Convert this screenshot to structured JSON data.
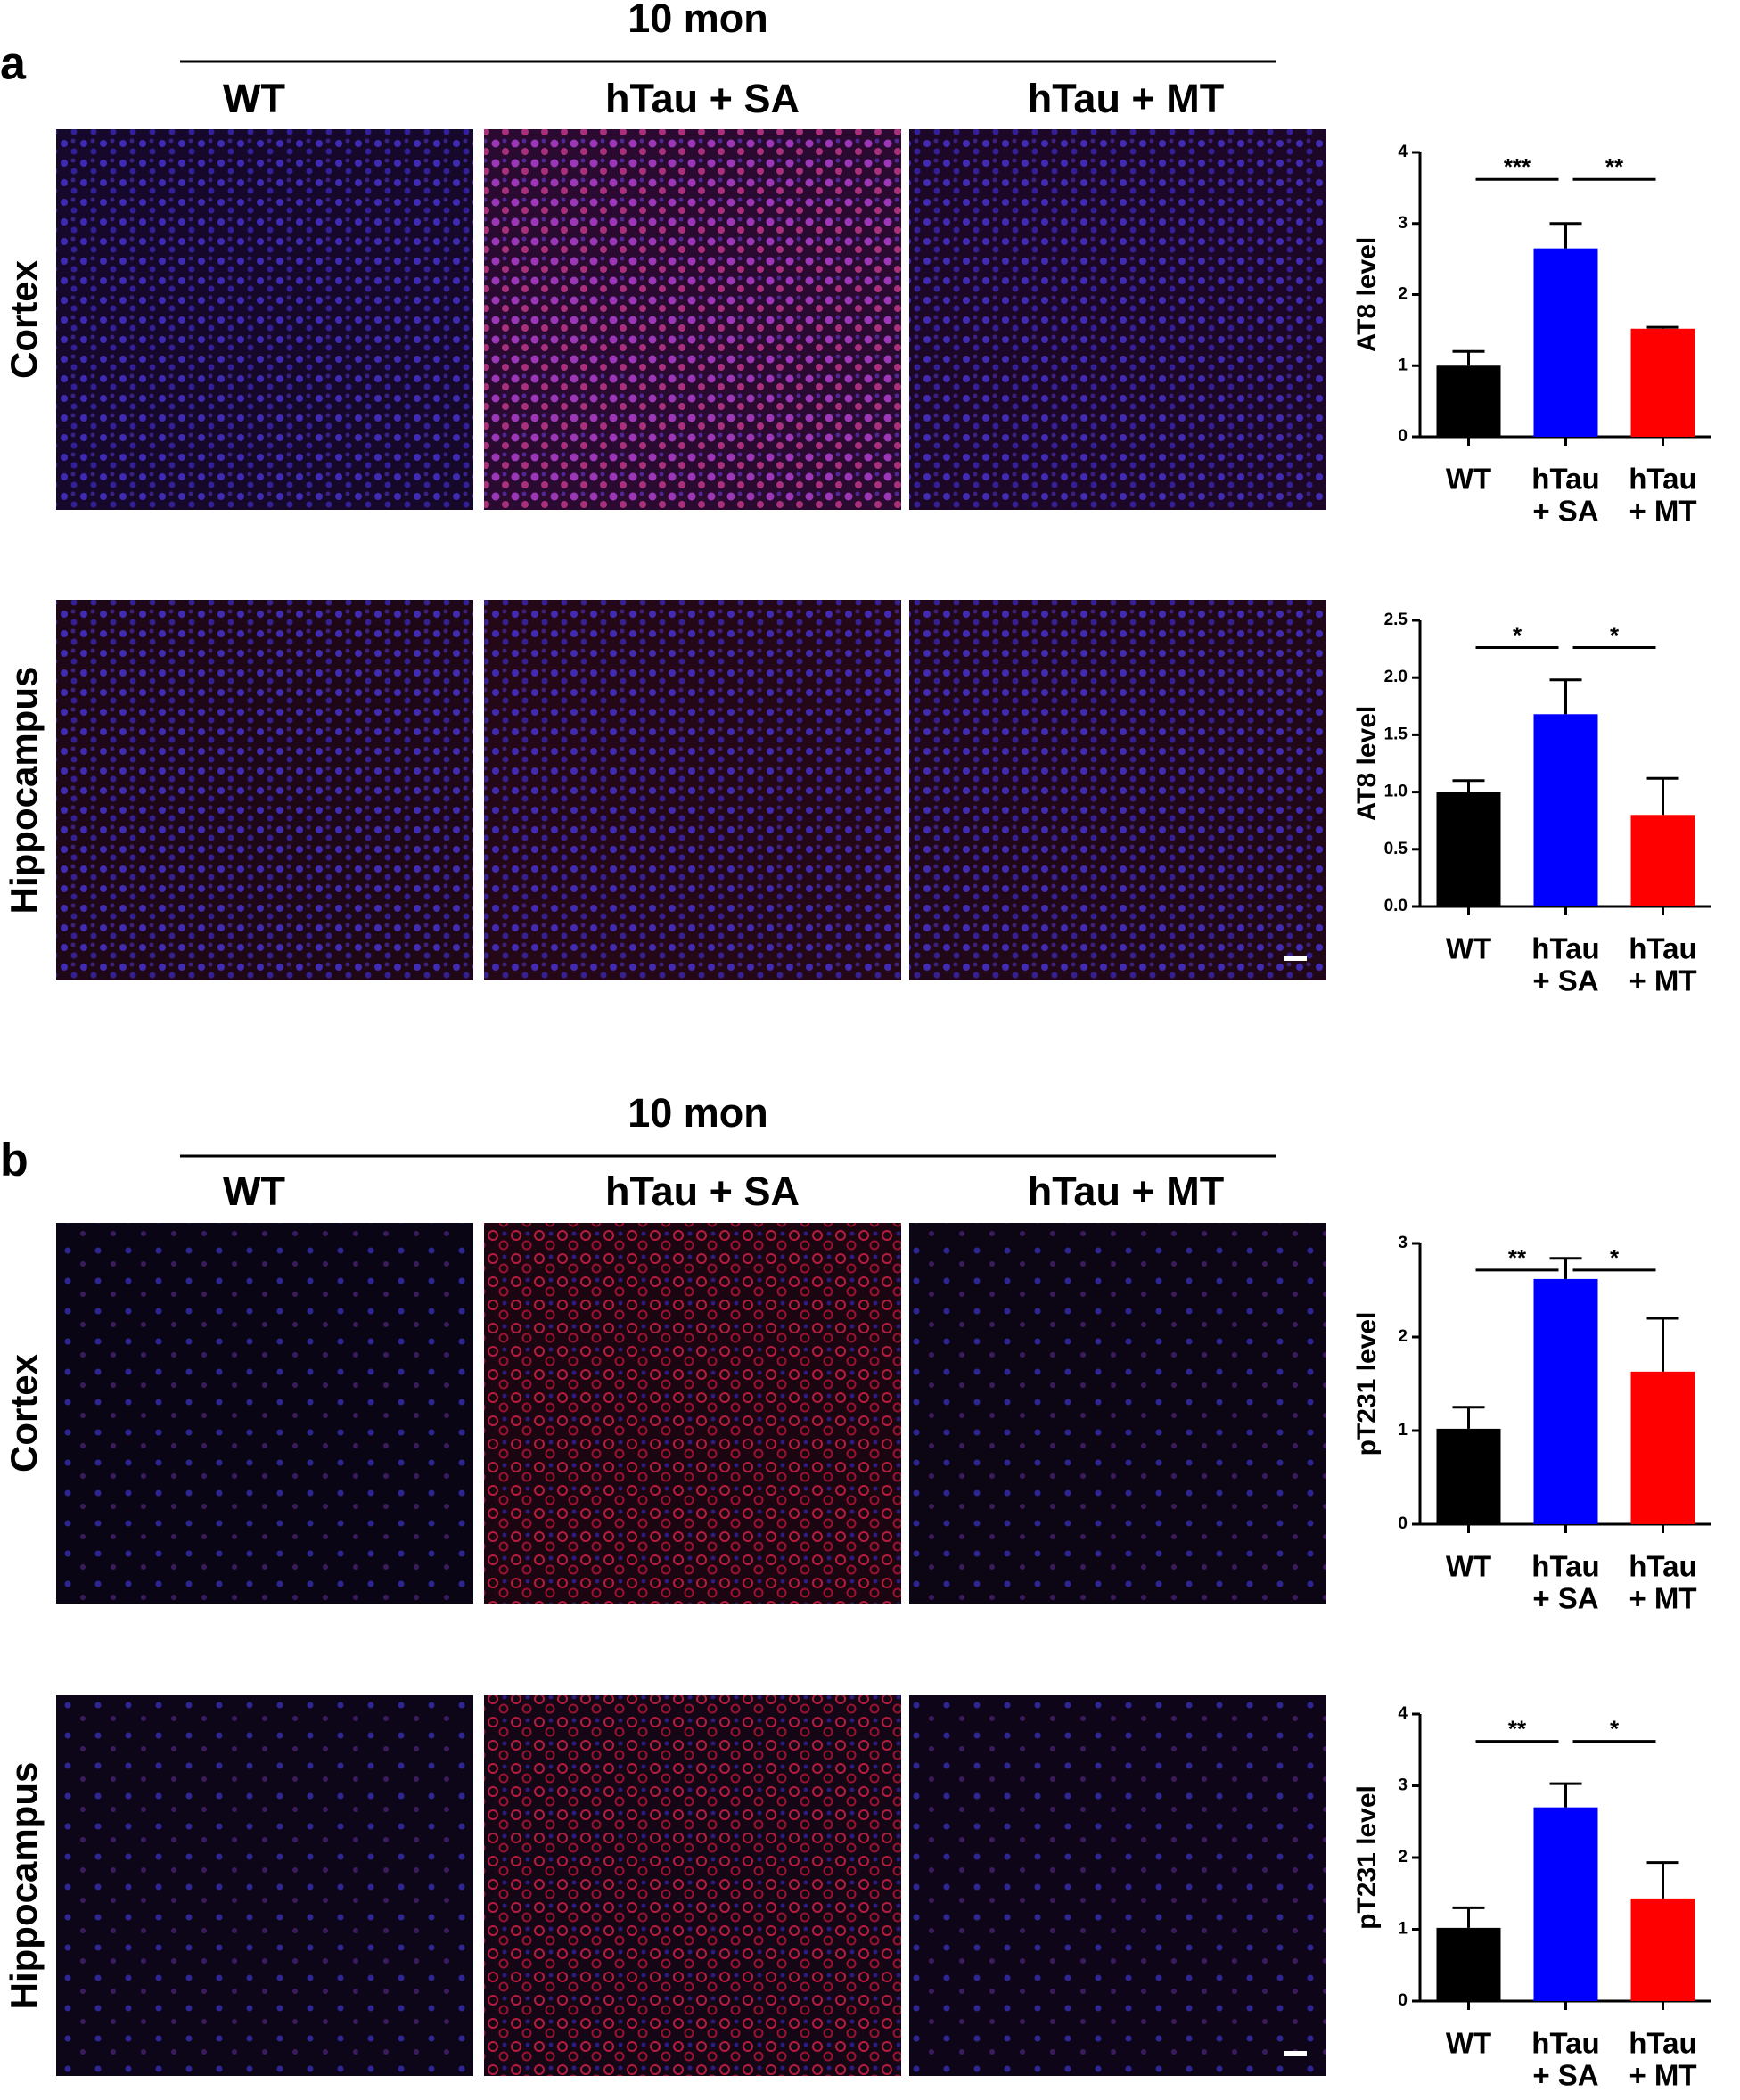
{
  "panels": [
    {
      "label": "a",
      "timepoint": "10 mon",
      "columns": [
        "WT",
        "hTau + SA",
        "hTau + MT"
      ],
      "rows": [
        "Cortex",
        "Hippocampus"
      ]
    },
    {
      "label": "b",
      "timepoint": "10 mon",
      "columns": [
        "WT",
        "hTau + SA",
        "hTau + MT"
      ],
      "rows": [
        "Cortex",
        "Hippocampus"
      ]
    }
  ],
  "chart_data": [
    {
      "type": "bar",
      "ylabel": "AT8  level",
      "categories": [
        [
          "WT"
        ],
        [
          "hTau",
          "+ SA"
        ],
        [
          "hTau",
          "+ MT"
        ]
      ],
      "values": [
        1.0,
        2.65,
        1.52
      ],
      "errors": [
        0.2,
        0.35,
        0.02
      ],
      "colors": [
        "#000000",
        "#0000ff",
        "#ff0000"
      ],
      "ylim": [
        0,
        4
      ],
      "yticks": [
        0,
        1,
        2,
        3,
        4
      ],
      "significance": [
        "***",
        "**"
      ]
    },
    {
      "type": "bar",
      "ylabel": "AT8  level",
      "categories": [
        [
          "WT"
        ],
        [
          "hTau",
          "+ SA"
        ],
        [
          "hTau",
          "+ MT"
        ]
      ],
      "values": [
        1.0,
        1.68,
        0.8
      ],
      "errors": [
        0.1,
        0.3,
        0.32
      ],
      "colors": [
        "#000000",
        "#0000ff",
        "#ff0000"
      ],
      "ylim": [
        0,
        2.5
      ],
      "yticks": [
        {
          "value": 0,
          "label": "0.0"
        },
        0.5,
        {
          "value": 1,
          "label": "1.0"
        },
        1.5,
        {
          "value": 2,
          "label": "2.0"
        },
        2.5
      ],
      "significance": [
        "*",
        "*"
      ]
    },
    {
      "type": "bar",
      "ylabel": "pT231  level",
      "categories": [
        [
          "WT"
        ],
        [
          "hTau",
          "+ SA"
        ],
        [
          "hTau",
          "+ MT"
        ]
      ],
      "values": [
        1.02,
        2.62,
        1.63
      ],
      "errors": [
        0.23,
        0.22,
        0.57
      ],
      "colors": [
        "#000000",
        "#0000ff",
        "#ff0000"
      ],
      "ylim": [
        0,
        3
      ],
      "yticks": [
        0,
        1,
        2,
        3
      ],
      "significance": [
        "**",
        "*"
      ]
    },
    {
      "type": "bar",
      "ylabel": "pT231  level",
      "categories": [
        [
          "WT"
        ],
        [
          "hTau",
          "+ SA"
        ],
        [
          "hTau",
          "+ MT"
        ]
      ],
      "values": [
        1.02,
        2.7,
        1.43
      ],
      "errors": [
        0.28,
        0.33,
        0.5
      ],
      "colors": [
        "#000000",
        "#0000ff",
        "#ff0000"
      ],
      "ylim": [
        0,
        4
      ],
      "yticks": [
        0,
        1,
        2,
        3,
        4
      ],
      "significance": [
        "**",
        "*"
      ]
    }
  ]
}
